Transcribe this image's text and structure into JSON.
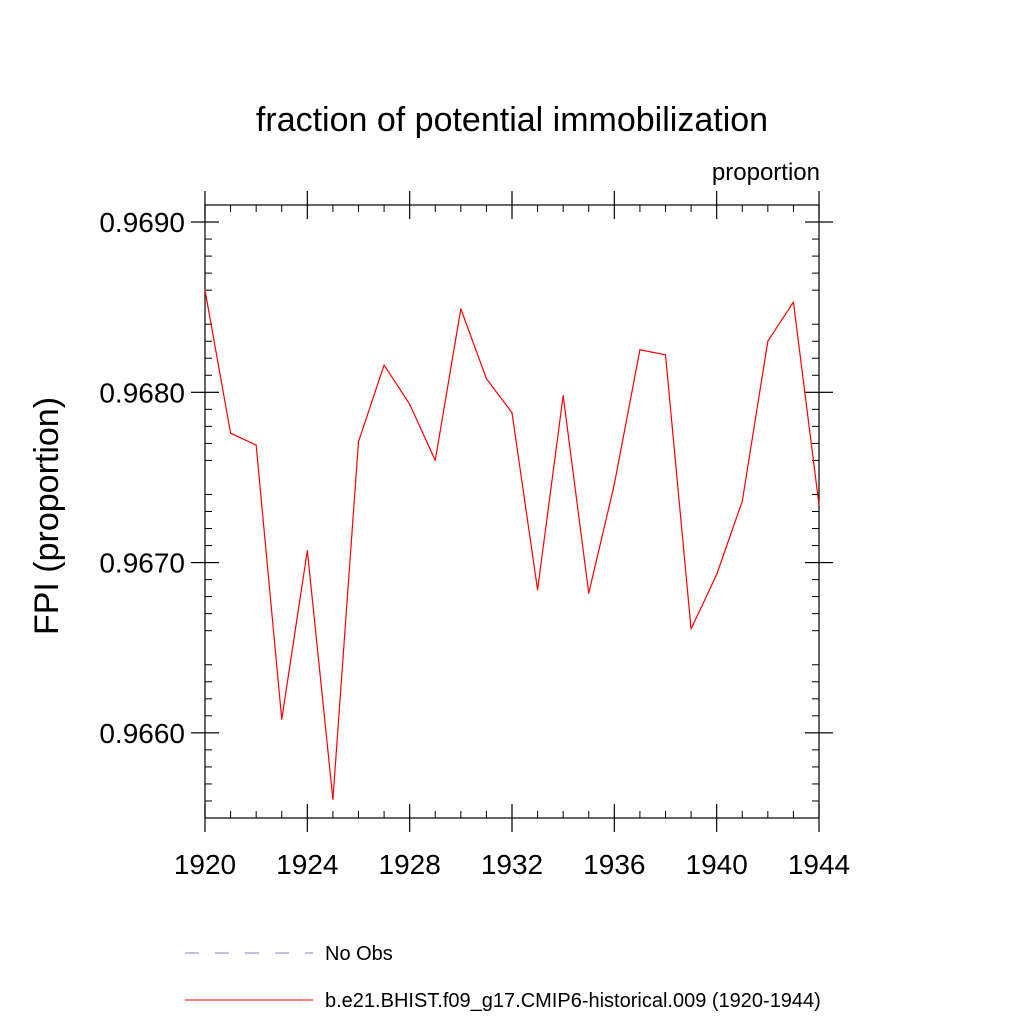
{
  "chart_data": {
    "type": "line",
    "title": "fraction of potential immobilization",
    "units_label": "proportion",
    "ylabel": "FPI  (proportion)",
    "xlabel": "",
    "xlim": [
      1920,
      1944
    ],
    "ylim": [
      0.9655,
      0.9691
    ],
    "x_ticks": [
      "1920",
      "1924",
      "1928",
      "1932",
      "1936",
      "1940",
      "1944"
    ],
    "y_ticks": [
      "0.9660",
      "0.9670",
      "0.9680",
      "0.9690"
    ],
    "grid": false,
    "legend_position": "bottom",
    "series": [
      {
        "name": "b.e21.BHIST.f09_g17.CMIP6-historical.009 (1920-1944)",
        "color": "#ff0000",
        "style": "solid",
        "x": [
          1920,
          1921,
          1922,
          1923,
          1924,
          1925,
          1926,
          1927,
          1928,
          1929,
          1930,
          1931,
          1932,
          1933,
          1934,
          1935,
          1936,
          1937,
          1938,
          1939,
          1940,
          1941,
          1942,
          1943,
          1944
        ],
        "values": [
          0.9686,
          0.96776,
          0.96769,
          0.96608,
          0.96707,
          0.96561,
          0.96771,
          0.96816,
          0.96793,
          0.9676,
          0.96849,
          0.96808,
          0.96788,
          0.96684,
          0.96798,
          0.96682,
          0.96746,
          0.96825,
          0.96822,
          0.96661,
          0.96693,
          0.96736,
          0.9683,
          0.96853,
          0.96734
        ]
      },
      {
        "name": "No Obs",
        "color": "#8080c0",
        "style": "dashed",
        "x": [],
        "values": []
      }
    ]
  }
}
